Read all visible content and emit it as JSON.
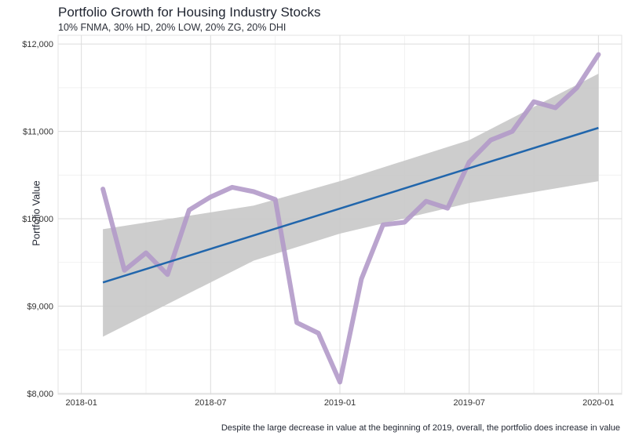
{
  "chart_data": {
    "type": "line",
    "title": "Portfolio Growth for Housing Industry Stocks",
    "subtitle": "10% FNMA, 30% HD, 20% LOW, 20% ZG, 20% DHI",
    "caption": "Despite the large decrease in value at the beginning of 2019, overall, the portfolio does increase in value",
    "xlabel": "",
    "ylabel": "Portfolio Value",
    "ylim": [
      7990,
      12100
    ],
    "xlim": [
      "2018-01",
      "2020-01"
    ],
    "x_ticks": [
      "2018-01",
      "2018-07",
      "2019-01",
      "2019-07",
      "2020-01"
    ],
    "y_ticks": [
      "$8,000",
      "$9,000",
      "$10,000",
      "$11,000",
      "$12,000"
    ],
    "y_tick_values": [
      8000,
      9000,
      10000,
      11000,
      12000
    ],
    "grid": true,
    "series": [
      {
        "type": "line",
        "color": "#b39ac9",
        "points": [
          [
            "2018-02-01",
            10340
          ],
          [
            "2018-03-01",
            9410
          ],
          [
            "2018-04-01",
            9610
          ],
          [
            "2018-05-01",
            9360
          ],
          [
            "2018-06-01",
            10100
          ],
          [
            "2018-07-01",
            10250
          ],
          [
            "2018-08-01",
            10360
          ],
          [
            "2018-09-01",
            10310
          ],
          [
            "2018-10-01",
            10220
          ],
          [
            "2018-11-01",
            8810
          ],
          [
            "2018-12-01",
            8690
          ],
          [
            "2019-01-01",
            8130
          ],
          [
            "2019-02-01",
            9310
          ],
          [
            "2019-03-01",
            9930
          ],
          [
            "2019-04-01",
            9960
          ],
          [
            "2019-05-01",
            10200
          ],
          [
            "2019-06-01",
            10120
          ],
          [
            "2019-07-01",
            10650
          ],
          [
            "2019-08-01",
            10900
          ],
          [
            "2019-09-01",
            11000
          ],
          [
            "2019-10-01",
            11340
          ],
          [
            "2019-11-01",
            11270
          ],
          [
            "2019-12-01",
            11500
          ],
          [
            "2020-01-01",
            11880
          ]
        ]
      },
      {
        "type": "trend",
        "color": "#2166ac",
        "start": [
          "2018-02-01",
          9270
        ],
        "end": [
          "2020-01-01",
          11040
        ]
      },
      {
        "type": "confidence-band",
        "color": "#c8c8c8",
        "upper": [
          [
            "2018-02-01",
            9880
          ],
          [
            "2018-09-01",
            10150
          ],
          [
            "2019-01-01",
            10430
          ],
          [
            "2019-07-01",
            10900
          ],
          [
            "2020-01-01",
            11660
          ]
        ],
        "lower": [
          [
            "2018-02-01",
            8650
          ],
          [
            "2018-09-01",
            9520
          ],
          [
            "2019-01-01",
            9830
          ],
          [
            "2019-07-01",
            10180
          ],
          [
            "2020-01-01",
            10430
          ]
        ]
      }
    ]
  }
}
